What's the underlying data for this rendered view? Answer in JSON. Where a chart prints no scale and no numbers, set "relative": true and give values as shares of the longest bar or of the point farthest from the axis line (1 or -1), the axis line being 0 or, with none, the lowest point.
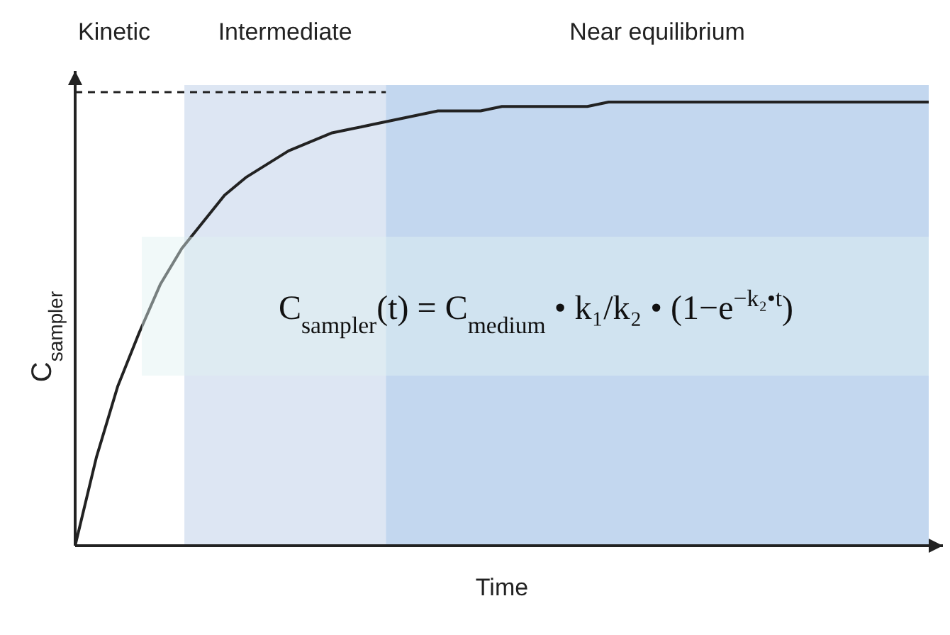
{
  "chart_data": {
    "type": "line",
    "relative": true,
    "xlabel": "Time",
    "ylabel": "C$_{sampler}$",
    "categories": [
      null,
      null,
      null,
      null,
      null,
      null,
      null,
      null,
      null,
      null,
      null,
      null,
      null,
      null,
      null,
      null,
      null,
      null,
      null,
      null,
      null,
      null,
      null,
      null,
      null,
      null,
      null,
      null,
      null,
      null,
      null,
      null,
      null,
      null,
      null,
      null,
      null,
      null,
      null,
      null,
      null
    ],
    "series": [
      {
        "color": "#222222",
        "values": [
          0,
          0.2,
          0.36,
          0.48,
          0.59,
          0.67,
          0.73,
          0.79,
          0.83,
          0.86,
          0.89,
          0.91,
          0.93,
          0.94,
          0.95,
          0.96,
          0.97,
          0.98,
          0.98,
          0.98,
          0.99,
          0.99,
          0.99,
          0.99,
          0.99,
          1,
          1,
          1,
          1,
          1,
          1,
          1,
          1,
          1,
          1,
          1,
          1,
          1,
          1,
          1,
          1
        ]
      }
    ],
    "annotations": [
      "Kinetic",
      "Intermediate",
      "Near equilibrium",
      "C$_{sampler}$(t) = C$_{medium}$ • k₁/k₂ • (1−e$^{−k₂•t}$)"
    ]
  }
}
